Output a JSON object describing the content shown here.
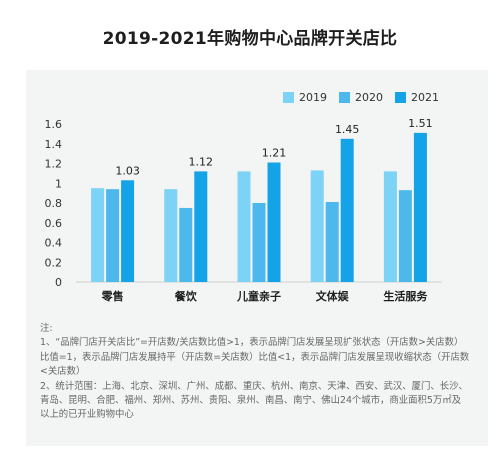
{
  "chart_data": {
    "type": "bar",
    "title": "2019-2021年购物中心品牌开关店比",
    "categories": [
      "零售",
      "餐饮",
      "儿童亲子",
      "文体娱",
      "生活服务"
    ],
    "series": [
      {
        "name": "2019",
        "values": [
          0.95,
          0.94,
          1.12,
          1.13,
          1.12
        ],
        "color": "#7dd3f5"
      },
      {
        "name": "2020",
        "values": [
          0.94,
          0.75,
          0.8,
          0.81,
          0.93
        ],
        "color": "#4cb8ec"
      },
      {
        "name": "2021",
        "values": [
          1.03,
          1.12,
          1.21,
          1.45,
          1.51
        ],
        "color": "#13a3e6",
        "labels": [
          "1.03",
          "1.12",
          "1.21",
          "1.45",
          "1.51"
        ]
      }
    ],
    "yticks": [
      "0",
      "0.2",
      "0.4",
      "0.6",
      "0.8",
      "1",
      "1.2",
      "1.4",
      "1.6"
    ],
    "ylim": [
      0,
      1.6
    ],
    "grid": false,
    "legend_position": "top-right"
  },
  "notes": {
    "heading": "注:",
    "line1": "1、“品牌门店开关店比”=开店数/关店数比值>1，表示品牌门店发展呈现扩张状态（开店数>关店数）比值=1，表示品牌门店发展持平（开店数=关店数）比值<1，表示品牌门店发展呈现收缩状态（开店数<关店数）",
    "line2": "2、统计范围：上海、北京、深圳、广州、成都、重庆、杭州、南京、天津、西安、武汉、厦门、长沙、青岛、昆明、合肥、福州、郑州、苏州、贵阳、泉州、南昌、南宁、佛山24个城市，商业面积5万㎡及以上的已开业购物中心"
  }
}
